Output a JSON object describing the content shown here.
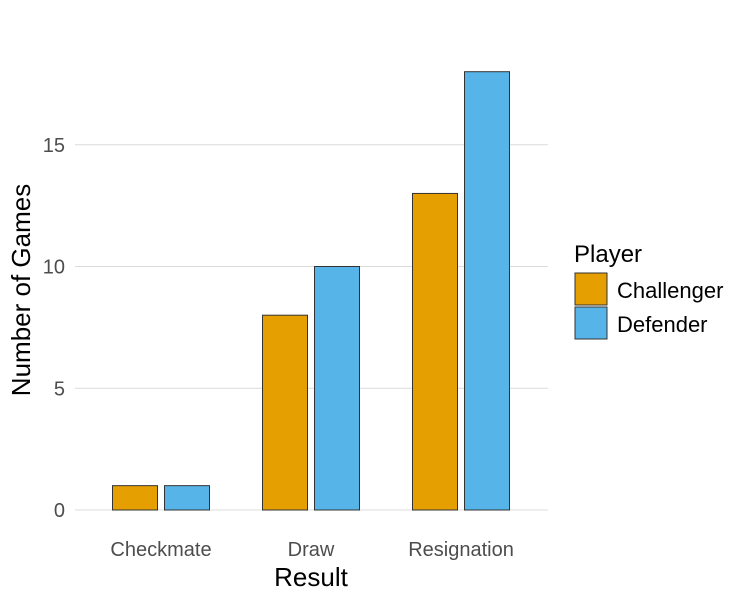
{
  "chart_data": {
    "type": "bar",
    "xlabel": "Result",
    "ylabel": "Number of Games",
    "categories": [
      "Checkmate",
      "Draw",
      "Resignation"
    ],
    "series": [
      {
        "name": "Challenger",
        "values": [
          1,
          8,
          13
        ],
        "color": "#E69F00"
      },
      {
        "name": "Defender",
        "values": [
          1,
          10,
          18
        ],
        "color": "#56B4E9"
      }
    ],
    "ylim": [
      0,
      18
    ],
    "yticks": [
      0,
      5,
      10,
      15
    ],
    "grid": true,
    "legend": {
      "title": "Player",
      "position": "right"
    }
  }
}
